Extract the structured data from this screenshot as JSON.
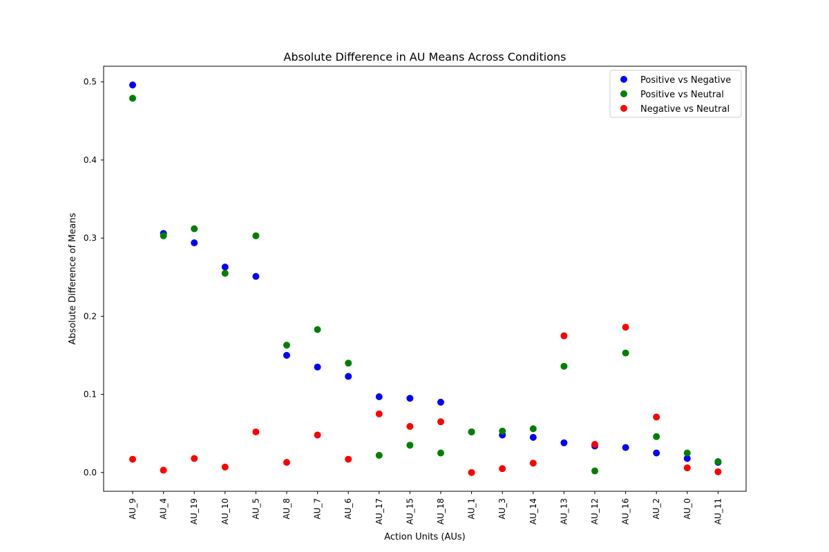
{
  "chart_data": {
    "type": "scatter",
    "title": "Absolute Difference in AU Means Across Conditions",
    "xlabel": "Action Units (AUs)",
    "ylabel": "Absolute Difference of Means",
    "categories": [
      "AU_9",
      "AU_4",
      "AU_19",
      "AU_10",
      "AU_5",
      "AU_8",
      "AU_7",
      "AU_6",
      "AU_17",
      "AU_15",
      "AU_18",
      "AU_1",
      "AU_3",
      "AU_14",
      "AU_13",
      "AU_12",
      "AU_16",
      "AU_2",
      "AU_0",
      "AU_11"
    ],
    "ylim": [
      -0.024,
      0.52
    ],
    "yticks": [
      "0.0",
      "0.1",
      "0.2",
      "0.3",
      "0.4",
      "0.5"
    ],
    "grid": false,
    "legend_position": "top-right",
    "series": [
      {
        "name": "Positive vs Negative",
        "color": "#0000ff",
        "values": [
          0.496,
          0.306,
          0.294,
          0.263,
          0.251,
          0.15,
          0.135,
          0.123,
          0.097,
          0.095,
          0.09,
          0.052,
          0.048,
          0.045,
          0.038,
          0.034,
          0.032,
          0.025,
          0.018,
          0.013
        ]
      },
      {
        "name": "Positive vs Neutral",
        "color": "#008000",
        "values": [
          0.479,
          0.303,
          0.312,
          0.255,
          0.303,
          0.163,
          0.183,
          0.14,
          0.022,
          0.035,
          0.025,
          0.052,
          0.053,
          0.056,
          0.136,
          0.002,
          0.153,
          0.046,
          0.025,
          0.014
        ]
      },
      {
        "name": "Negative vs Neutral",
        "color": "#ff0000",
        "values": [
          0.017,
          0.003,
          0.018,
          0.007,
          0.052,
          0.013,
          0.048,
          0.017,
          0.075,
          0.059,
          0.065,
          0.0,
          0.005,
          0.012,
          0.175,
          0.036,
          0.186,
          0.071,
          0.006,
          0.001
        ]
      }
    ]
  }
}
